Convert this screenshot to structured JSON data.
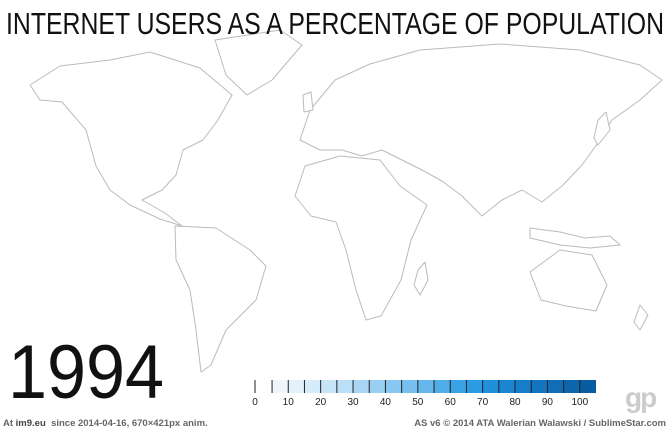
{
  "title": "INTERNET USERS AS A PERCENTAGE OF POPULATION",
  "year": "1994",
  "legend": {
    "ticks": [
      "0",
      "10",
      "20",
      "30",
      "40",
      "50",
      "60",
      "70",
      "80",
      "90",
      "100"
    ],
    "colors": [
      "#eef6fc",
      "#e3f1fb",
      "#d6ecfa",
      "#c8e5f8",
      "#bbdff7",
      "#a9d6f5",
      "#99cff3",
      "#88c7f1",
      "#77bfef",
      "#66b7ec",
      "#4faeea",
      "#3aa3e6",
      "#2b9be3",
      "#2090db",
      "#1a86d2",
      "#167dc8",
      "#1375bf",
      "#106db6",
      "#0d65ac",
      "#0a5ca2"
    ]
  },
  "logo": "gp",
  "footer": {
    "left_prefix": "At",
    "left_site": "im9.eu",
    "left_suffix": "since 2014-04-16, 670×421px anim.",
    "right": "AS v6 © 2014 ATA Walerian Walawski / SublimeStar.com"
  }
}
